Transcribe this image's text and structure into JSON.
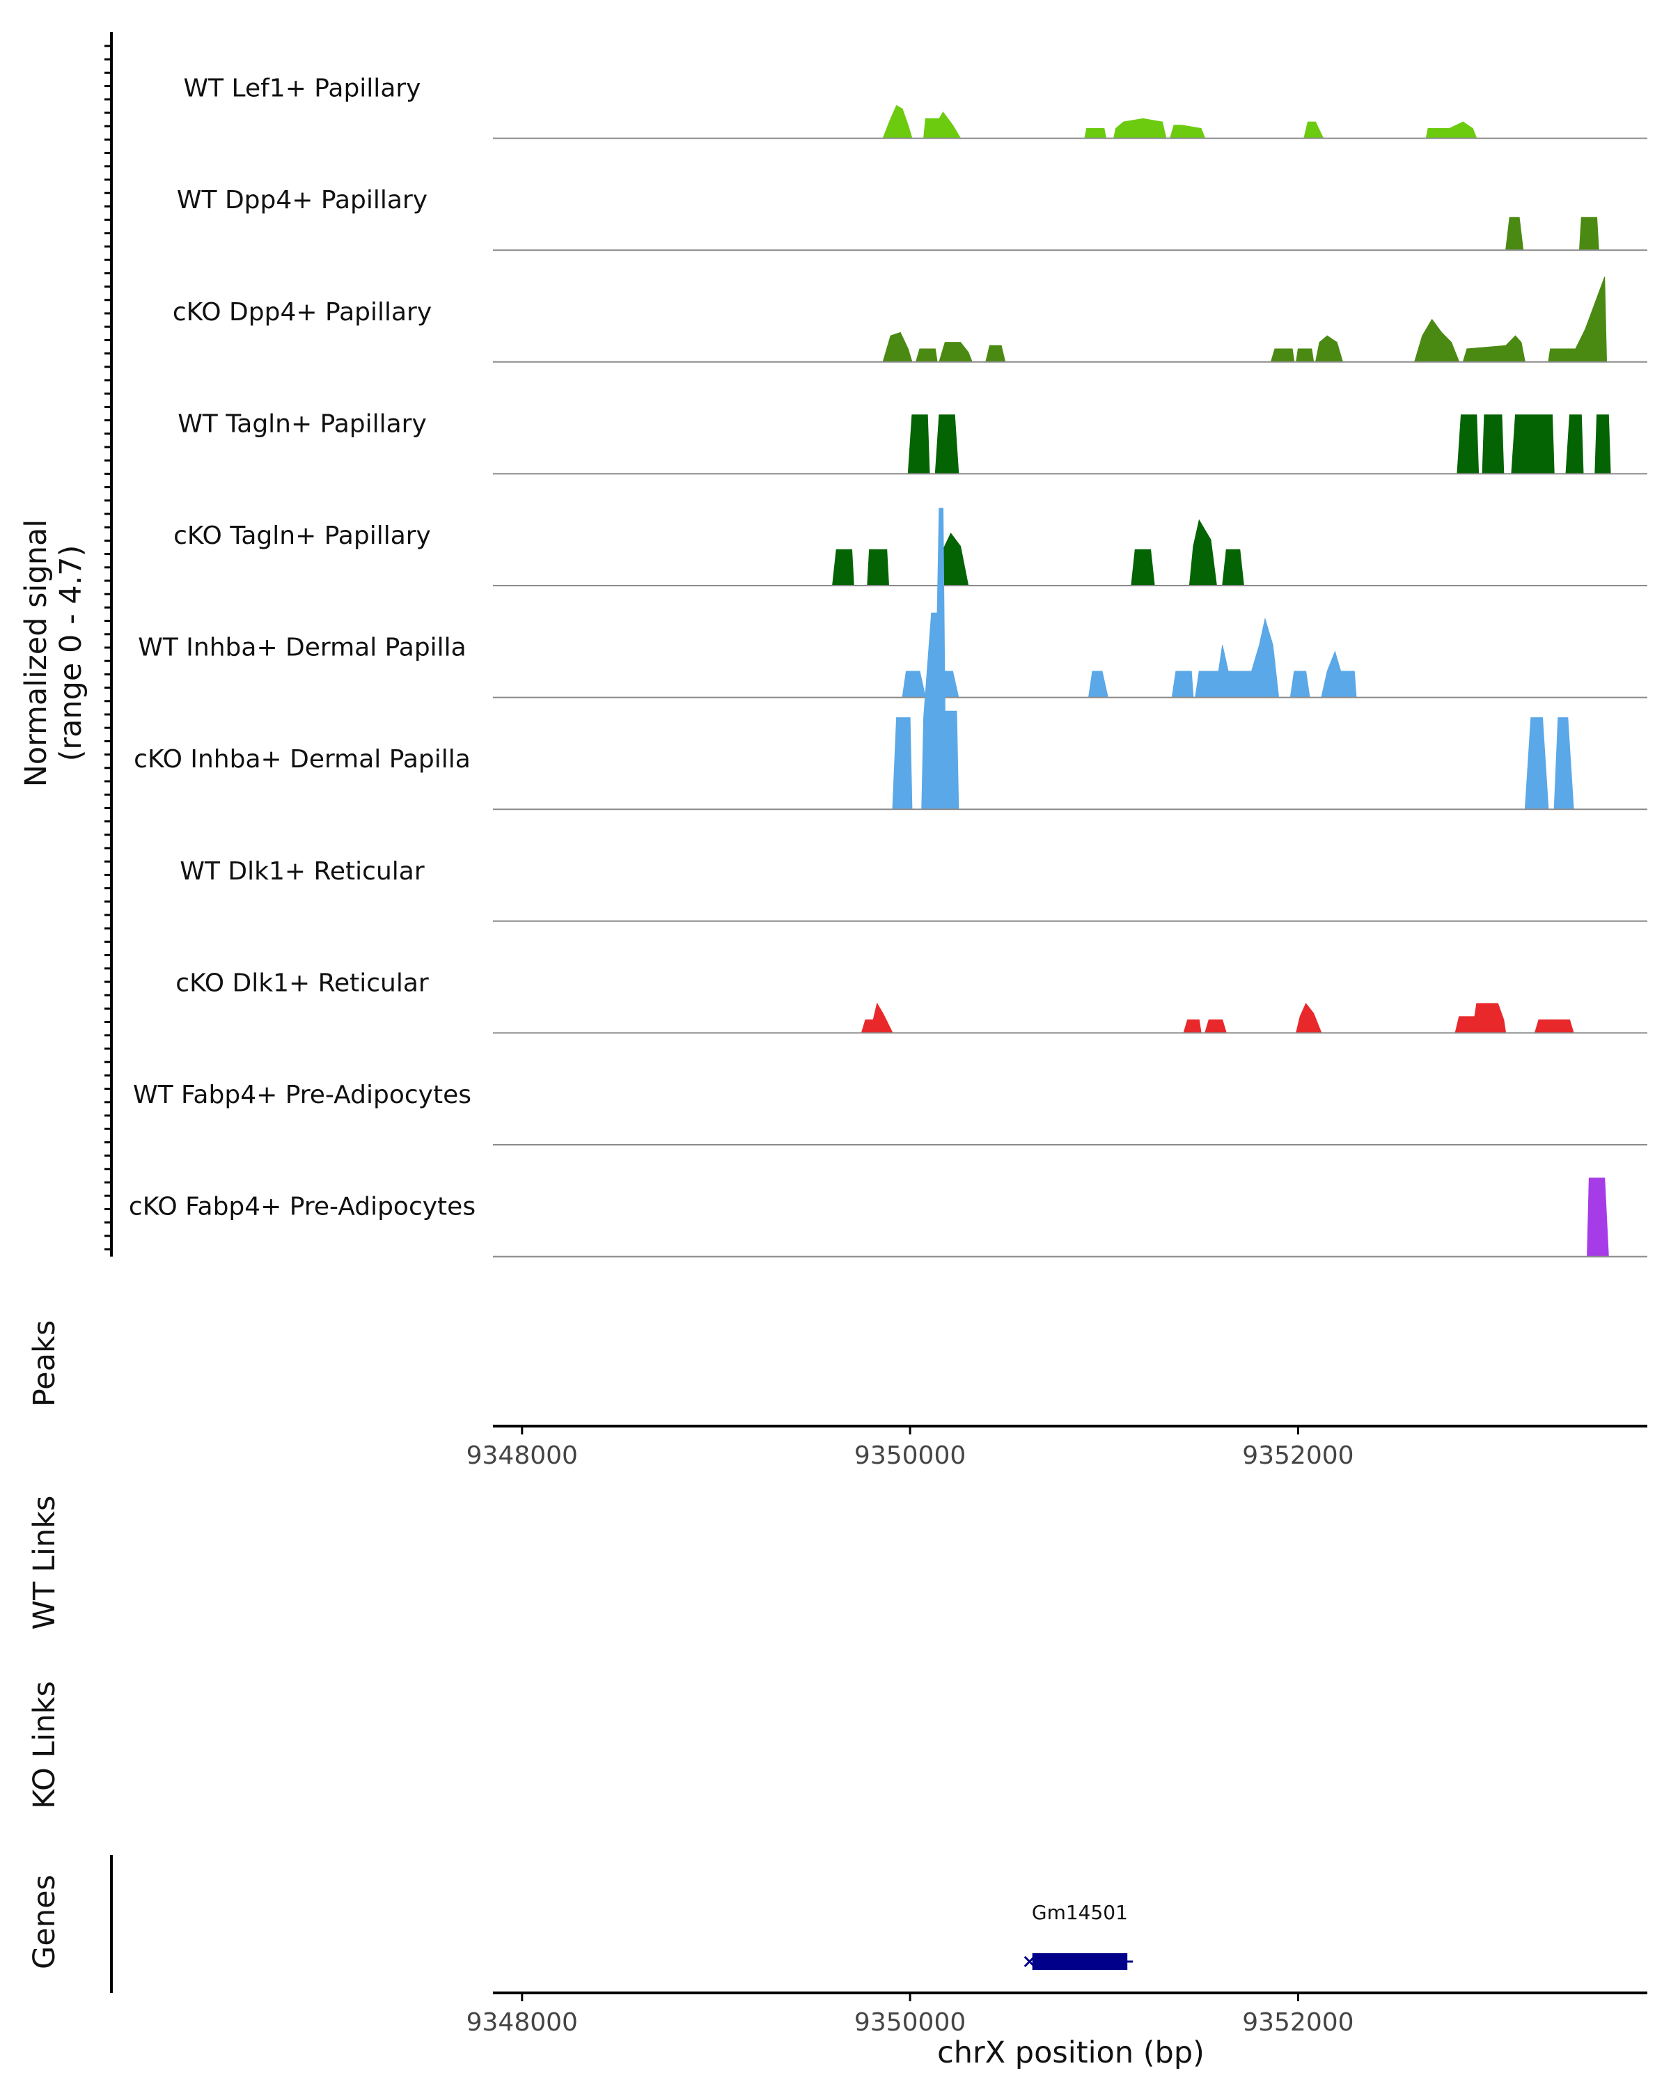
{
  "chart_data": {
    "type": "area",
    "title": "",
    "genome_view": {
      "chromosome": "chrX",
      "xlim": [
        9347850,
        9353800
      ],
      "xticks": [
        9348000,
        9350000,
        9352000
      ],
      "xtick_labels": [
        "9348000",
        "9350000",
        "9352000"
      ],
      "xlabel": "chrX position (bp)"
    },
    "signal_ylabel": [
      "Normalized signal",
      "(range 0 - 4.7)"
    ],
    "signal_ylim": [
      0,
      4.7
    ],
    "panel_labels": {
      "peaks": "Peaks",
      "wt_links": "WT Links",
      "ko_links": "KO Links",
      "genes": "Genes"
    },
    "series": [
      {
        "name": "WT Lef1+ Papillary",
        "color": "#6CCB0E",
        "segments": [
          [
            [
              9349860,
              0
            ],
            [
              9349900,
              0.3
            ],
            [
              9349930,
              0.5
            ],
            [
              9349960,
              0.45
            ],
            [
              9349990,
              0.2
            ],
            [
              9350010,
              0
            ]
          ],
          [
            [
              9350070,
              0
            ],
            [
              9350080,
              0.3
            ],
            [
              9350150,
              0.3
            ],
            [
              9350170,
              0.4
            ],
            [
              9350220,
              0.2
            ],
            [
              9350260,
              0
            ]
          ],
          [
            [
              9350900,
              0
            ],
            [
              9350910,
              0.15
            ],
            [
              9351000,
              0.15
            ],
            [
              9351010,
              0
            ]
          ],
          [
            [
              9351050,
              0
            ],
            [
              9351060,
              0.15
            ],
            [
              9351100,
              0.25
            ],
            [
              9351200,
              0.3
            ],
            [
              9351300,
              0.25
            ],
            [
              9351320,
              0
            ]
          ],
          [
            [
              9351340,
              0
            ],
            [
              9351360,
              0.2
            ],
            [
              9351400,
              0.2
            ],
            [
              9351500,
              0.15
            ],
            [
              9351520,
              0
            ]
          ],
          [
            [
              9352030,
              0
            ],
            [
              9352050,
              0.25
            ],
            [
              9352090,
              0.25
            ],
            [
              9352130,
              0
            ]
          ],
          [
            [
              9352660,
              0
            ],
            [
              9352670,
              0.15
            ],
            [
              9352780,
              0.15
            ],
            [
              9352850,
              0.25
            ],
            [
              9352900,
              0.15
            ],
            [
              9352920,
              0
            ]
          ]
        ]
      },
      {
        "name": "WT Dpp4+ Papillary",
        "color": "#4A8A12",
        "segments": [
          [
            [
              9353070,
              0
            ],
            [
              9353090,
              0.5
            ],
            [
              9353140,
              0.5
            ],
            [
              9353160,
              0
            ]
          ],
          [
            [
              9353450,
              0
            ],
            [
              9353460,
              0.5
            ],
            [
              9353540,
              0.5
            ],
            [
              9353550,
              0
            ]
          ]
        ]
      },
      {
        "name": "cKO Dpp4+ Papillary",
        "color": "#4A8A12",
        "segments": [
          [
            [
              9349860,
              0
            ],
            [
              9349900,
              0.4
            ],
            [
              9349950,
              0.45
            ],
            [
              9349990,
              0.2
            ],
            [
              9350010,
              0
            ]
          ],
          [
            [
              9350030,
              0
            ],
            [
              9350050,
              0.2
            ],
            [
              9350130,
              0.2
            ],
            [
              9350140,
              0
            ]
          ],
          [
            [
              9350150,
              0
            ],
            [
              9350180,
              0.3
            ],
            [
              9350260,
              0.3
            ],
            [
              9350300,
              0.15
            ],
            [
              9350320,
              0
            ]
          ],
          [
            [
              9350390,
              0
            ],
            [
              9350410,
              0.25
            ],
            [
              9350470,
              0.25
            ],
            [
              9350490,
              0
            ]
          ],
          [
            [
              9351860,
              0
            ],
            [
              9351880,
              0.2
            ],
            [
              9351970,
              0.2
            ],
            [
              9351980,
              0
            ]
          ],
          [
            [
              9351990,
              0
            ],
            [
              9352000,
              0.2
            ],
            [
              9352070,
              0.2
            ],
            [
              9352080,
              0
            ]
          ],
          [
            [
              9352090,
              0
            ],
            [
              9352110,
              0.3
            ],
            [
              9352150,
              0.4
            ],
            [
              9352200,
              0.3
            ],
            [
              9352230,
              0
            ]
          ],
          [
            [
              9352600,
              0
            ],
            [
              9352640,
              0.4
            ],
            [
              9352690,
              0.65
            ],
            [
              9352740,
              0.45
            ],
            [
              9352790,
              0.3
            ],
            [
              9352830,
              0
            ]
          ],
          [
            [
              9352850,
              0
            ],
            [
              9352870,
              0.2
            ],
            [
              9353070,
              0.25
            ],
            [
              9353120,
              0.4
            ],
            [
              9353150,
              0.3
            ],
            [
              9353170,
              0
            ]
          ],
          [
            [
              9353290,
              0
            ],
            [
              9353300,
              0.2
            ],
            [
              9353430,
              0.2
            ],
            [
              9353480,
              0.5
            ],
            [
              9353530,
              0.9
            ],
            [
              9353580,
              1.3
            ],
            [
              9353590,
              0
            ]
          ]
        ]
      },
      {
        "name": "WT Tagln+ Papillary",
        "color": "#046404",
        "segments": [
          [
            [
              9349990,
              0
            ],
            [
              9350010,
              0.9
            ],
            [
              9350090,
              0.9
            ],
            [
              9350100,
              0
            ]
          ],
          [
            [
              9350130,
              0
            ],
            [
              9350150,
              0.9
            ],
            [
              9350230,
              0.9
            ],
            [
              9350250,
              0
            ]
          ],
          [
            [
              9352820,
              0
            ],
            [
              9352840,
              0.9
            ],
            [
              9352920,
              0.9
            ],
            [
              9352930,
              0
            ]
          ],
          [
            [
              9352950,
              0
            ],
            [
              9352960,
              0.9
            ],
            [
              9353050,
              0.9
            ],
            [
              9353060,
              0
            ]
          ],
          [
            [
              9353100,
              0
            ],
            [
              9353120,
              0.9
            ],
            [
              9353310,
              0.9
            ],
            [
              9353320,
              0
            ]
          ],
          [
            [
              9353380,
              0
            ],
            [
              9353400,
              0.9
            ],
            [
              9353460,
              0.9
            ],
            [
              9353470,
              0
            ]
          ],
          [
            [
              9353530,
              0
            ],
            [
              9353540,
              0.9
            ],
            [
              9353600,
              0.9
            ],
            [
              9353610,
              0
            ]
          ]
        ]
      },
      {
        "name": "cKO Tagln+ Papillary",
        "color": "#046404",
        "segments": [
          [
            [
              9349600,
              0
            ],
            [
              9349620,
              0.55
            ],
            [
              9349700,
              0.55
            ],
            [
              9349710,
              0
            ]
          ],
          [
            [
              9349780,
              0
            ],
            [
              9349790,
              0.55
            ],
            [
              9349880,
              0.55
            ],
            [
              9349890,
              0
            ]
          ],
          [
            [
              9350150,
              0
            ],
            [
              9350170,
              0.55
            ],
            [
              9350210,
              0.8
            ],
            [
              9350260,
              0.6
            ],
            [
              9350300,
              0
            ]
          ],
          [
            [
              9351140,
              0
            ],
            [
              9351160,
              0.55
            ],
            [
              9351240,
              0.55
            ],
            [
              9351260,
              0
            ]
          ],
          [
            [
              9351440,
              0
            ],
            [
              9351460,
              0.6
            ],
            [
              9351490,
              1.0
            ],
            [
              9351550,
              0.7
            ],
            [
              9351580,
              0
            ]
          ],
          [
            [
              9351610,
              0
            ],
            [
              9351630,
              0.55
            ],
            [
              9351700,
              0.55
            ],
            [
              9351720,
              0
            ]
          ]
        ]
      },
      {
        "name": "WT Inhba+ Dermal Papilla",
        "color": "#5AA8E8",
        "segments": [
          [
            [
              9349960,
              0
            ],
            [
              9349980,
              0.4
            ],
            [
              9350050,
              0.4
            ],
            [
              9350080,
              0
            ]
          ],
          [
            [
              9350120,
              0
            ],
            [
              9350140,
              0.4
            ],
            [
              9350220,
              0.4
            ],
            [
              9350250,
              0
            ]
          ],
          [
            [
              9350920,
              0
            ],
            [
              9350940,
              0.4
            ],
            [
              9350990,
              0.4
            ],
            [
              9351020,
              0
            ]
          ],
          [
            [
              9351350,
              0
            ],
            [
              9351370,
              0.4
            ],
            [
              9351450,
              0.4
            ],
            [
              9351460,
              0
            ]
          ],
          [
            [
              9351470,
              0
            ],
            [
              9351490,
              0.4
            ],
            [
              9351590,
              0.4
            ],
            [
              9351610,
              0.8
            ],
            [
              9351640,
              0.4
            ],
            [
              9351760,
              0.4
            ],
            [
              9351800,
              0.8
            ],
            [
              9351830,
              1.2
            ],
            [
              9351870,
              0.8
            ],
            [
              9351900,
              0
            ]
          ],
          [
            [
              9351960,
              0
            ],
            [
              9351980,
              0.4
            ],
            [
              9352040,
              0.4
            ],
            [
              9352060,
              0
            ]
          ],
          [
            [
              9352120,
              0
            ],
            [
              9352150,
              0.4
            ],
            [
              9352190,
              0.7
            ],
            [
              9352220,
              0.4
            ],
            [
              9352290,
              0.4
            ],
            [
              9352300,
              0
            ]
          ]
        ]
      },
      {
        "name": "cKO Inhba+ Dermal Papilla",
        "color": "#5AA8E8",
        "segments": [
          [
            [
              9349910,
              0
            ],
            [
              9349930,
              1.4
            ],
            [
              9350000,
              1.4
            ],
            [
              9350010,
              0
            ]
          ],
          [
            [
              9350060,
              0
            ],
            [
              9350070,
              1.4
            ],
            [
              9350110,
              3.0
            ],
            [
              9350140,
              3.0
            ],
            [
              9350150,
              4.6
            ],
            [
              9350170,
              4.6
            ],
            [
              9350180,
              1.5
            ],
            [
              9350240,
              1.5
            ],
            [
              9350250,
              0
            ]
          ],
          [
            [
              9353170,
              0
            ],
            [
              9353200,
              1.4
            ],
            [
              9353260,
              1.4
            ],
            [
              9353290,
              0
            ]
          ],
          [
            [
              9353320,
              0
            ],
            [
              9353340,
              1.4
            ],
            [
              9353390,
              1.4
            ],
            [
              9353420,
              0
            ]
          ]
        ]
      },
      {
        "name": "WT Dlk1+ Reticular",
        "color": "#E8282B",
        "segments": []
      },
      {
        "name": "cKO Dlk1+ Reticular",
        "color": "#E8282B",
        "segments": [
          [
            [
              9349750,
              0
            ],
            [
              9349770,
              0.2
            ],
            [
              9349810,
              0.2
            ],
            [
              9349830,
              0.45
            ],
            [
              9349860,
              0.3
            ],
            [
              9349910,
              0
            ]
          ],
          [
            [
              9351410,
              0
            ],
            [
              9351430,
              0.2
            ],
            [
              9351490,
              0.2
            ],
            [
              9351500,
              0
            ]
          ],
          [
            [
              9351520,
              0
            ],
            [
              9351540,
              0.2
            ],
            [
              9351610,
              0.2
            ],
            [
              9351630,
              0
            ]
          ],
          [
            [
              9351990,
              0
            ],
            [
              9352010,
              0.25
            ],
            [
              9352040,
              0.45
            ],
            [
              9352080,
              0.3
            ],
            [
              9352120,
              0
            ]
          ],
          [
            [
              9352810,
              0
            ],
            [
              9352830,
              0.25
            ],
            [
              9352910,
              0.25
            ],
            [
              9352920,
              0.45
            ],
            [
              9353030,
              0.45
            ],
            [
              9353060,
              0.2
            ],
            [
              9353070,
              0
            ]
          ],
          [
            [
              9353220,
              0
            ],
            [
              9353240,
              0.2
            ],
            [
              9353400,
              0.2
            ],
            [
              9353420,
              0
            ]
          ]
        ]
      },
      {
        "name": "WT Fabp4+ Pre-Adipocytes",
        "color": "#A63CE8",
        "segments": []
      },
      {
        "name": "cKO Fabp4+ Pre-Adipocytes",
        "color": "#A63CE8",
        "segments": [
          [
            [
              9353490,
              0
            ],
            [
              9353500,
              1.2
            ],
            [
              9353580,
              1.2
            ],
            [
              9353600,
              0
            ]
          ]
        ]
      }
    ],
    "genes": [
      {
        "name": "Gm14501",
        "start": 9350630,
        "end": 9351120,
        "color": "#00008B"
      }
    ]
  }
}
